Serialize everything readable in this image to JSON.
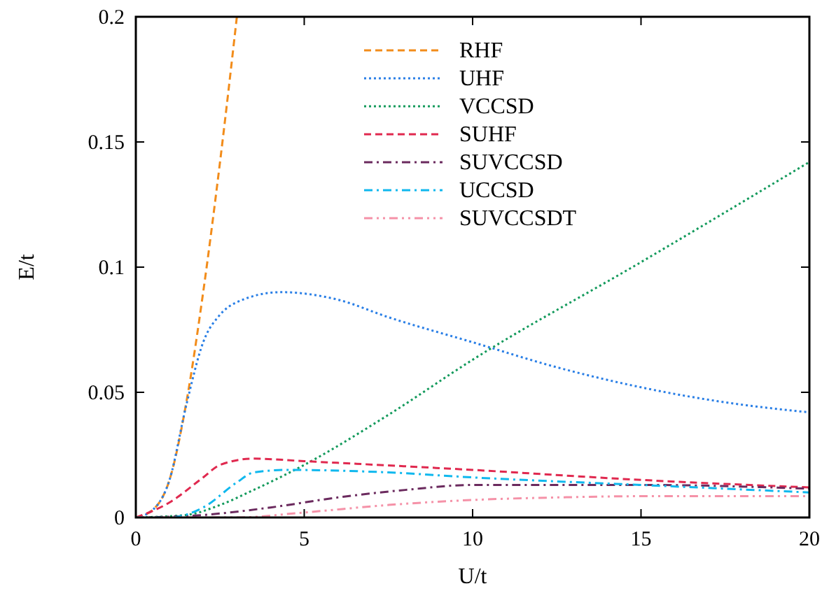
{
  "chart_data": {
    "type": "line",
    "xlabel": "U/t",
    "ylabel": "E/t",
    "xlim": [
      0,
      20
    ],
    "ylim": [
      0,
      0.2
    ],
    "xticks": [
      0,
      5,
      10,
      15,
      20
    ],
    "yticks": [
      0,
      0.05,
      0.1,
      0.15,
      0.2
    ],
    "grid": false,
    "legend": "top",
    "series": [
      {
        "name": "RHF",
        "color": "#f28c1a",
        "line_style": "dashed",
        "x": [
          0,
          0.5,
          1,
          1.5,
          2,
          2.5,
          3
        ],
        "values": [
          0,
          0.003,
          0.015,
          0.046,
          0.09,
          0.142,
          0.2
        ]
      },
      {
        "name": "UHF",
        "color": "#2a7fe6",
        "line_style": "dotted",
        "x": [
          0,
          0.5,
          1,
          1.5,
          2,
          2.5,
          3,
          4.3,
          6,
          7.5,
          10,
          12.5,
          15,
          17.5,
          20
        ],
        "values": [
          0,
          0.003,
          0.015,
          0.045,
          0.07,
          0.081,
          0.086,
          0.09,
          0.087,
          0.08,
          0.07,
          0.06,
          0.052,
          0.046,
          0.042
        ]
      },
      {
        "name": "VCCSD",
        "color": "#139a5c",
        "line_style": "dotted",
        "x": [
          0,
          1.5,
          2.5,
          3.5,
          5,
          7.5,
          10,
          15,
          20
        ],
        "values": [
          0,
          0.001,
          0.005,
          0.011,
          0.021,
          0.041,
          0.063,
          0.102,
          0.142
        ]
      },
      {
        "name": "SUHF",
        "color": "#e0294f",
        "line_style": "dashed",
        "x": [
          0,
          1,
          2,
          2.5,
          3.5,
          5,
          10,
          15,
          20
        ],
        "values": [
          0,
          0.006,
          0.016,
          0.021,
          0.0235,
          0.0225,
          0.019,
          0.015,
          0.012
        ]
      },
      {
        "name": "SUVCCSD",
        "color": "#6b2a5e",
        "line_style": "dashdot",
        "x": [
          0,
          2,
          4,
          6,
          8,
          10,
          12,
          15,
          20
        ],
        "values": [
          0,
          0.001,
          0.004,
          0.008,
          0.011,
          0.013,
          0.013,
          0.013,
          0.0115
        ]
      },
      {
        "name": "UCCSD",
        "color": "#10b8ee",
        "line_style": "dashdot",
        "x": [
          0,
          1,
          2,
          3,
          3.5,
          4.5,
          7.5,
          10,
          15,
          20
        ],
        "values": [
          0,
          0,
          0.004,
          0.014,
          0.018,
          0.019,
          0.018,
          0.016,
          0.013,
          0.01
        ]
      },
      {
        "name": "SUVCCSDT",
        "color": "#f592a8",
        "line_style": "dashdotdot",
        "x": [
          0,
          3,
          5,
          7.5,
          10,
          12.5,
          15,
          20
        ],
        "values": [
          0,
          0,
          0.002,
          0.005,
          0.007,
          0.008,
          0.0085,
          0.0085
        ]
      }
    ]
  }
}
